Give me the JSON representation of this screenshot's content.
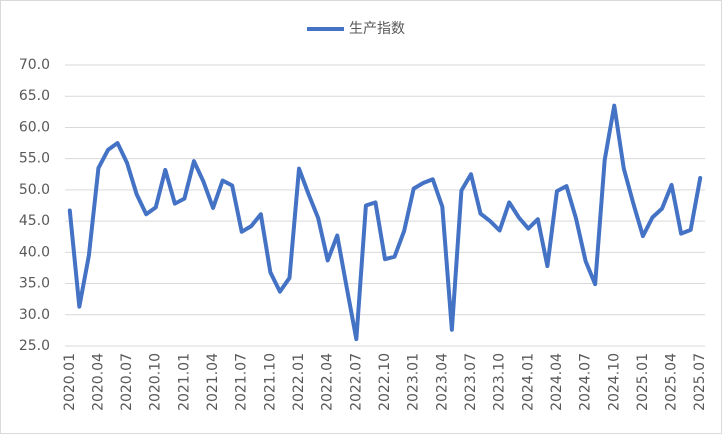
{
  "chart_data": {
    "type": "line",
    "categories": [
      "2020.01",
      null,
      null,
      "2020.04",
      null,
      null,
      "2020.07",
      null,
      null,
      "2020.10",
      null,
      null,
      "2021.01",
      null,
      null,
      "2021.04",
      null,
      null,
      "2021.07",
      null,
      null,
      "2021.10",
      null,
      null,
      "2022.01",
      null,
      null,
      "2022.04",
      null,
      null,
      "2022.07",
      null,
      null,
      "2022.10",
      null,
      null,
      "2023.01",
      null,
      null,
      "2023.04",
      null,
      null,
      "2023.07",
      null,
      null,
      "2023.10",
      null,
      null,
      "2024.01",
      null,
      null,
      "2024.04",
      null,
      null,
      "2024.07",
      null,
      null,
      "2024.10",
      null,
      null,
      "2025.01",
      null,
      null,
      "2025.04",
      null,
      null,
      "2025.07"
    ],
    "series": [
      {
        "name": "生产指数",
        "color": "#4472c4",
        "values": [
          46.7,
          31.3,
          39.5,
          53.5,
          56.4,
          57.5,
          54.3,
          49.3,
          46.1,
          47.2,
          53.2,
          47.8,
          48.6,
          54.6,
          51.3,
          47.1,
          51.5,
          50.7,
          43.3,
          44.2,
          46.1,
          36.8,
          33.7,
          35.9,
          53.4,
          49.3,
          45.5,
          38.7,
          42.7,
          34.3,
          26.1,
          47.5,
          48.0,
          38.9,
          39.3,
          43.4,
          50.2,
          51.1,
          51.7,
          47.3,
          27.6,
          49.9,
          52.5,
          46.2,
          45.0,
          43.5,
          48.0,
          45.6,
          43.8,
          45.3,
          37.8,
          49.8,
          50.6,
          45.4,
          38.6,
          34.9,
          54.8,
          63.5,
          53.4,
          47.8,
          42.6,
          45.6,
          47.0,
          50.8,
          43.0,
          43.6,
          51.9
        ]
      }
    ],
    "ylim": [
      25,
      70
    ],
    "yticks": [
      {
        "value": 25,
        "label": "25.0"
      },
      {
        "value": 30,
        "label": "30.0"
      },
      {
        "value": 35,
        "label": "35.0"
      },
      {
        "value": 40,
        "label": "40.0"
      },
      {
        "value": 45,
        "label": "45.0"
      },
      {
        "value": 50,
        "label": "50.0"
      },
      {
        "value": 55,
        "label": "55.0"
      },
      {
        "value": 60,
        "label": "60.0"
      },
      {
        "value": 65,
        "label": "65.0"
      },
      {
        "value": 70,
        "label": "70.0"
      }
    ],
    "grid": true,
    "legend": "top"
  }
}
